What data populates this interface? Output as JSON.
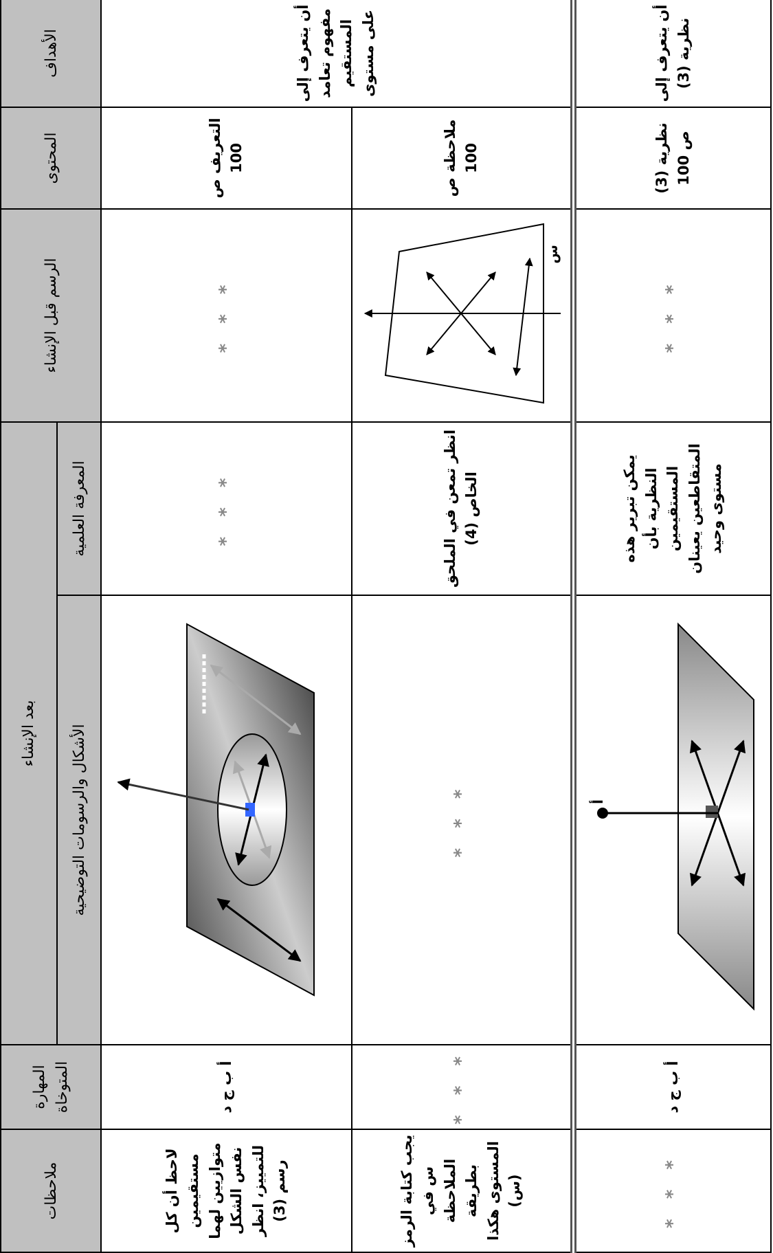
{
  "table": {
    "header": {
      "objectives": "الأهداف",
      "content": "المحتوى",
      "drawing_before": "الرسم قبل الإنشاء",
      "after": "بعد الإنشاء",
      "knowledge": "المعرفة العلمية",
      "figures": "الأشكال والرسومات التوضيحية",
      "skill": "المهارة المتوخاة",
      "notes": "ملاحظات"
    },
    "rows": [
      {
        "objective": "أن يتعرف إلى مفهوم تعامد المستقيم على مستوى",
        "content": "التعريف ص 100",
        "drawing_before": "* * *",
        "knowledge": "* * *",
        "skill": "أ ب ج د",
        "notes": "لاحظ أن كل مستقيمين متوازيين لهما نفس الشكل للتمييز، انظر رسم (3)"
      },
      {
        "content": "ملاحظة ص 100",
        "drawing_label": "س",
        "knowledge": "انظر تمعن في الملحق الخاص (4)",
        "figures": "* * *",
        "skill": "* * *",
        "notes": "يجب كتابة الرمز س في الملاحظة بطريقة المستوى هكذا (س)"
      },
      {
        "objective": "أن يتعرف إلى نظرية (3)",
        "content": "نظرية (3) ص 100",
        "drawing_before": "* * *",
        "knowledge": "يمكن تبرير هذه النظرية بأن المستقيمين المتقاطعين يعينان مستوى وحيد",
        "figure_label": "أ",
        "skill": "أ ب ج د",
        "notes": "* * *"
      }
    ]
  }
}
